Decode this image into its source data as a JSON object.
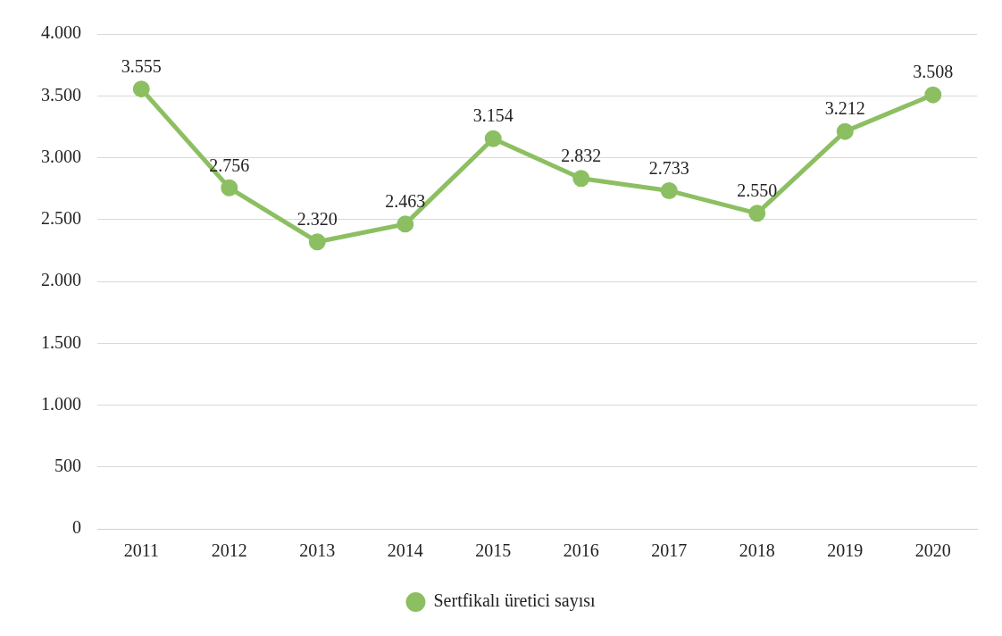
{
  "chart_data": {
    "type": "line",
    "categories": [
      "2011",
      "2012",
      "2013",
      "2014",
      "2015",
      "2016",
      "2017",
      "2018",
      "2019",
      "2020"
    ],
    "series": [
      {
        "name": "Sertfikalı üretici sayısı",
        "color": "#8cbf62",
        "values": [
          3555,
          2756,
          2320,
          2463,
          3154,
          2832,
          2733,
          2550,
          3212,
          3508
        ],
        "value_labels": [
          "3.555",
          "2.756",
          "2.320",
          "2.463",
          "3.154",
          "2.832",
          "2.733",
          "2.550",
          "3.212",
          "3.508"
        ]
      }
    ],
    "ylim": [
      0,
      4000
    ],
    "yticks": [
      {
        "value": 0,
        "label": "0"
      },
      {
        "value": 500,
        "label": "500"
      },
      {
        "value": 1000,
        "label": "1.000"
      },
      {
        "value": 1500,
        "label": "1.500"
      },
      {
        "value": 2000,
        "label": "2.000"
      },
      {
        "value": 2500,
        "label": "2.500"
      },
      {
        "value": 3000,
        "label": "3.000"
      },
      {
        "value": 3500,
        "label": "3.500"
      },
      {
        "value": 4000,
        "label": "4.000"
      }
    ],
    "grid": "y",
    "legend": "bottom",
    "marker": "circle",
    "line_style": "solid"
  }
}
